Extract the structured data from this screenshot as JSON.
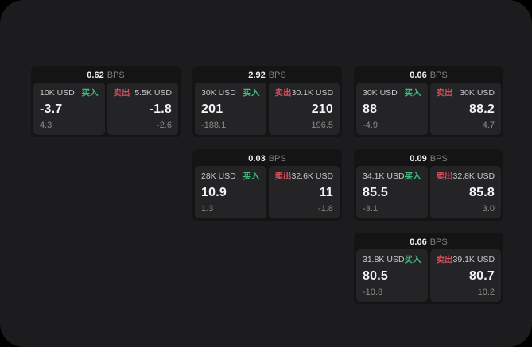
{
  "colors": {
    "window_bg": "#1c1c1e",
    "card_bg": "#141414",
    "panel_bg": "#242426",
    "buy_green": "#41bd7d",
    "sell_red": "#d94f5c",
    "value_white": "#f4f4f4",
    "muted_gray": "#8b8b8b"
  },
  "labels": {
    "buy": "买入",
    "sell": "卖出",
    "bps_unit": "BPS"
  },
  "cards": [
    {
      "bps": "0.62",
      "unit": "BPS",
      "buy": {
        "amount": "10K USD",
        "tag": "买入",
        "value": "-3.7",
        "sub": "4.3"
      },
      "sell": {
        "amount": "5.5K USD",
        "tag": "卖出",
        "value": "-1.8",
        "sub": "-2.6"
      }
    },
    {
      "bps": "2.92",
      "unit": "BPS",
      "buy": {
        "amount": "30K USD",
        "tag": "买入",
        "value": "201",
        "sub": "-188.1"
      },
      "sell": {
        "amount": "30.1K USD",
        "tag": "卖出",
        "value": "210",
        "sub": "196.5"
      }
    },
    {
      "bps": "0.06",
      "unit": "BPS",
      "buy": {
        "amount": "30K USD",
        "tag": "买入",
        "value": "88",
        "sub": "-4.9"
      },
      "sell": {
        "amount": "30K USD",
        "tag": "卖出",
        "value": "88.2",
        "sub": "4.7"
      }
    },
    {
      "bps": "0.03",
      "unit": "BPS",
      "buy": {
        "amount": "28K USD",
        "tag": "买入",
        "value": "10.9",
        "sub": "1.3"
      },
      "sell": {
        "amount": "32.6K USD",
        "tag": "卖出",
        "value": "11",
        "sub": "-1.8"
      }
    },
    {
      "bps": "0.09",
      "unit": "BPS",
      "buy": {
        "amount": "34.1K USD",
        "tag": "买入",
        "value": "85.5",
        "sub": "-3.1"
      },
      "sell": {
        "amount": "32.8K USD",
        "tag": "卖出",
        "value": "85.8",
        "sub": "3.0"
      }
    },
    {
      "bps": "0.06",
      "unit": "BPS",
      "buy": {
        "amount": "31.8K USD",
        "tag": "买入",
        "value": "80.5",
        "sub": "-10.8"
      },
      "sell": {
        "amount": "39.1K USD",
        "tag": "卖出",
        "value": "80.7",
        "sub": "10.2"
      }
    }
  ]
}
